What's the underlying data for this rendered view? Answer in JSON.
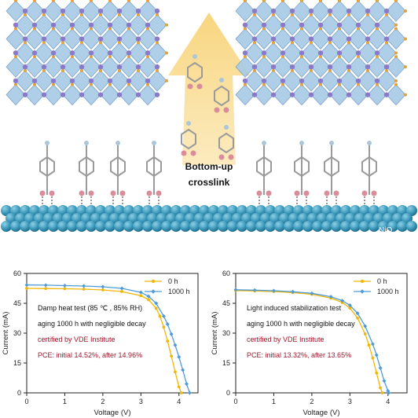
{
  "scene": {
    "label_line1": "Bottom-up",
    "label_line2": "crosslink",
    "substrate_label": "NiOx",
    "colors": {
      "octahedra": "#a7c9e6",
      "octahedra_edge": "#6f9cc4",
      "a_site": "#8b79c9",
      "x_site": "#e2a23a",
      "substrate": "#3f9bbd",
      "arrow": "#f6d27a",
      "molecule_carbon": "#9a9a9a",
      "molecule_oxygen": "#d98c99",
      "molecule_hydrogen": "#a9c7d9"
    }
  },
  "colors": {
    "series_0h": "#f2b705",
    "series_1000h": "#4f9bd8",
    "note_highlight": "#a0162b",
    "note_text": "#111111"
  },
  "chart_data": [
    {
      "type": "line",
      "xlabel": "Voltage (V)",
      "ylabel": "Current (mA)",
      "xlim": [
        0,
        4.5
      ],
      "ylim": [
        0,
        60
      ],
      "xticks": [
        "0",
        "1",
        "2",
        "3",
        "4"
      ],
      "yticks": [
        "0",
        "15",
        "30",
        "45",
        "60"
      ],
      "legend_position": "top-right",
      "series": [
        {
          "name": "0 h",
          "color": "#f2b705",
          "marker": "circle",
          "x": [
            0,
            0.5,
            1.0,
            1.5,
            2.0,
            2.5,
            3.0,
            3.2,
            3.4,
            3.5,
            3.6,
            3.7,
            3.8,
            3.9,
            4.0,
            4.06
          ],
          "y": [
            52.5,
            52.4,
            52.3,
            52.1,
            51.7,
            50.9,
            48.8,
            46.8,
            42.5,
            38.5,
            33.0,
            26.0,
            18.5,
            10.5,
            3.0,
            0
          ]
        },
        {
          "name": "1000 h",
          "color": "#4f9bd8",
          "marker": "diamond",
          "x": [
            0,
            0.5,
            1.0,
            1.5,
            2.0,
            2.5,
            3.0,
            3.2,
            3.4,
            3.6,
            3.7,
            3.8,
            3.9,
            4.0,
            4.1,
            4.2,
            4.28
          ],
          "y": [
            54.2,
            54.1,
            53.9,
            53.7,
            53.3,
            52.5,
            50.5,
            48.5,
            45.0,
            38.5,
            34.5,
            29.5,
            24.0,
            18.0,
            11.5,
            4.5,
            0
          ]
        }
      ],
      "annotations": [
        {
          "text": "Damp heat test (85 ℃ , 85% RH)",
          "highlight": false
        },
        {
          "text": "aging 1000 h with negligible decay",
          "highlight": false
        },
        {
          "text": "certified by VDE Institute",
          "highlight": true
        },
        {
          "text": "PCE: initial 14.52%, after 14.96%",
          "highlight": true
        }
      ]
    },
    {
      "type": "line",
      "xlabel": "Voltage (V)",
      "ylabel": "Current (mA)",
      "xlim": [
        0,
        4.5
      ],
      "ylim": [
        0,
        60
      ],
      "xticks": [
        "0",
        "1",
        "2",
        "3",
        "4"
      ],
      "yticks": [
        "0",
        "15",
        "30",
        "45",
        "60"
      ],
      "legend_position": "top-right",
      "series": [
        {
          "name": "0 h",
          "color": "#f2b705",
          "marker": "circle",
          "x": [
            0,
            0.5,
            1.0,
            1.5,
            2.0,
            2.5,
            2.8,
            3.0,
            3.2,
            3.4,
            3.5,
            3.6,
            3.7,
            3.8,
            3.85
          ],
          "y": [
            51.4,
            51.2,
            50.9,
            50.4,
            49.5,
            47.6,
            45.4,
            42.6,
            37.6,
            29.6,
            24.0,
            17.5,
            10.0,
            2.5,
            0
          ]
        },
        {
          "name": "1000 h",
          "color": "#4f9bd8",
          "marker": "diamond",
          "x": [
            0,
            0.5,
            1.0,
            1.5,
            2.0,
            2.5,
            2.8,
            3.0,
            3.2,
            3.4,
            3.6,
            3.7,
            3.8,
            3.9,
            4.0,
            4.02
          ],
          "y": [
            51.8,
            51.6,
            51.3,
            50.8,
            50.0,
            48.3,
            46.3,
            44.0,
            40.0,
            33.5,
            24.5,
            19.0,
            12.5,
            6.0,
            1.0,
            0
          ]
        }
      ],
      "annotations": [
        {
          "text": "Light induced stabilization test",
          "highlight": false
        },
        {
          "text": "aging 1000 h with negligible decay",
          "highlight": false
        },
        {
          "text": "certified by VDE Institute",
          "highlight": true
        },
        {
          "text": "PCE: initial 13.32%, after 13.65%",
          "highlight": true
        }
      ]
    }
  ]
}
